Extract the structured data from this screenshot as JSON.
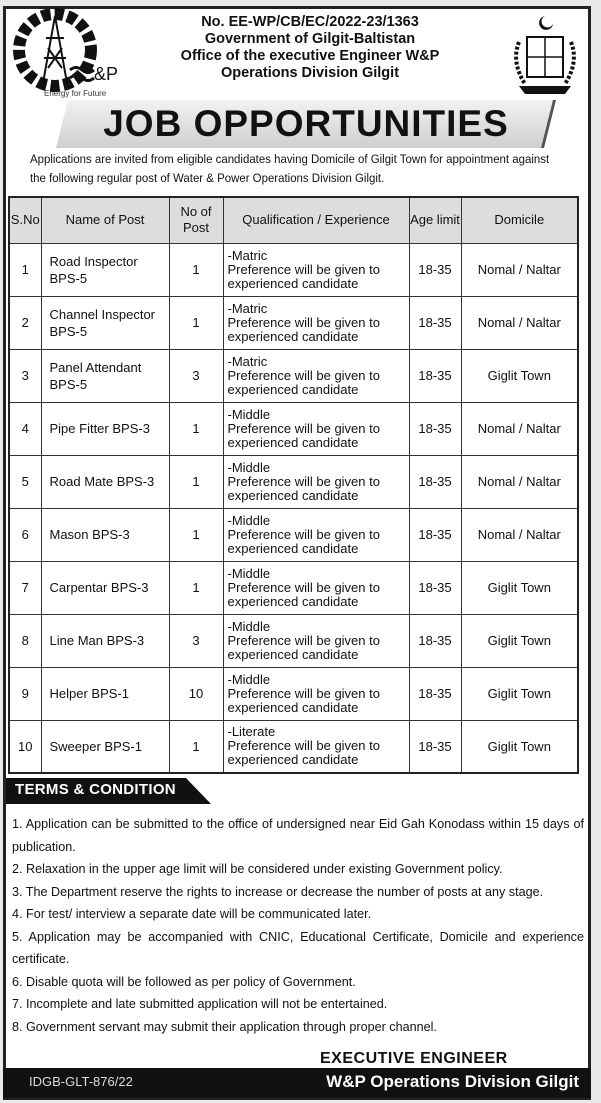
{
  "header": {
    "ref_no": "No. EE-WP/CB/EC/2022-23/1363",
    "line1": "Government of Gilgit-Baltistan",
    "line2": "Office of the executive Engineer W&P",
    "line3": "Operations Division Gilgit"
  },
  "logo": {
    "text": "&P",
    "tagline": "Energy for Future"
  },
  "title": "JOB OPPORTUNITIES",
  "intro": "Applications are invited from eligible candidates having Domicile of Gilgit Town for appointment against the following regular post of Water & Power Operations Division Gilgit.",
  "table": {
    "headers": [
      "S.No",
      "Name of Post",
      "No of Post",
      "Qualification / Experience",
      "Age limit",
      "Domicile"
    ],
    "rows": [
      {
        "sno": "1",
        "name": "Road Inspector BPS-5",
        "posts": "1",
        "qual": "-Matric",
        "pref": "Preference will be given to experienced candidate",
        "age": "18-35",
        "domicile": "Nomal / Naltar"
      },
      {
        "sno": "2",
        "name": "Channel Inspector BPS-5",
        "posts": "1",
        "qual": "-Matric",
        "pref": "Preference will be given to experienced candidate",
        "age": "18-35",
        "domicile": "Nomal / Naltar"
      },
      {
        "sno": "3",
        "name": "Panel Attendant BPS-5",
        "posts": "3",
        "qual": "-Matric",
        "pref": "Preference will be given to experienced candidate",
        "age": "18-35",
        "domicile": "Giglit Town"
      },
      {
        "sno": "4",
        "name": "Pipe Fitter BPS-3",
        "posts": "1",
        "qual": "-Middle",
        "pref": "Preference will be given to experienced candidate",
        "age": "18-35",
        "domicile": "Nomal / Naltar"
      },
      {
        "sno": "5",
        "name": "Road Mate BPS-3",
        "posts": "1",
        "qual": "-Middle",
        "pref": "Preference will be given to experienced candidate",
        "age": "18-35",
        "domicile": "Nomal / Naltar"
      },
      {
        "sno": "6",
        "name": "Mason BPS-3",
        "posts": "1",
        "qual": "-Middle",
        "pref": "Preference will be given to experienced candidate",
        "age": "18-35",
        "domicile": "Nomal / Naltar"
      },
      {
        "sno": "7",
        "name": "Carpentar BPS-3",
        "posts": "1",
        "qual": "-Middle",
        "pref": "Preference will be given to experienced candidate",
        "age": "18-35",
        "domicile": "Giglit Town"
      },
      {
        "sno": "8",
        "name": "Line Man BPS-3",
        "posts": "3",
        "qual": "-Middle",
        "pref": "Preference will be given to experienced candidate",
        "age": "18-35",
        "domicile": "Giglit Town"
      },
      {
        "sno": "9",
        "name": "Helper BPS-1",
        "posts": "10",
        "qual": "-Middle",
        "pref": "Preference will be given to experienced candidate",
        "age": "18-35",
        "domicile": "Giglit Town"
      },
      {
        "sno": "10",
        "name": "Sweeper BPS-1",
        "posts": "1",
        "qual": "-Literate",
        "pref": "Preference will be given to experienced candidate",
        "age": "18-35",
        "domicile": "Giglit Town"
      }
    ]
  },
  "terms": {
    "title": "TERMS & CONDITION",
    "items": [
      "1. Application can be submitted to the office of undersigned near Eid Gah Konodass within 15 days of publication.",
      "2. Relaxation in the upper age limit will be considered under existing Government policy.",
      "3. The Department reserve the rights to increase or decrease the number of posts at any stage.",
      "4. For test/ interview a separate date will be communicated later.",
      "5. Application may be accompanied with CNIC, Educational Certificate, Domicile and experience certificate.",
      "6. Disable quota will be followed as per policy of Government.",
      "7. Incomplete and late submitted application will not be entertained.",
      "8. Government servant may submit their application through proper channel."
    ]
  },
  "signature": {
    "line1": "EXECUTIVE ENGINEER",
    "line2": "W&P Operations Division Gilgit"
  },
  "footer": {
    "ref": "IDGB-GLT-876/22"
  }
}
